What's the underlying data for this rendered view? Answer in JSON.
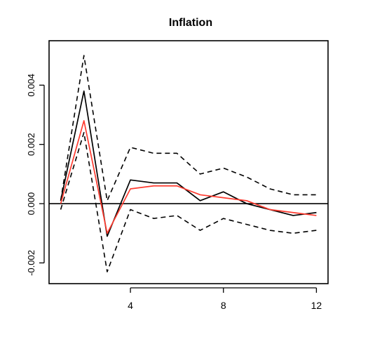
{
  "chart_data": {
    "type": "line",
    "title": "Inflation",
    "xlabel": "",
    "ylabel": "",
    "x": [
      1,
      2,
      3,
      4,
      5,
      6,
      7,
      8,
      9,
      10,
      11,
      12
    ],
    "xlim": [
      0.5,
      12.5
    ],
    "ylim": [
      -0.0027,
      0.0055
    ],
    "xticks": [
      4,
      8,
      12
    ],
    "xtick_labels": [
      "4",
      "8",
      "12"
    ],
    "yticks": [
      -0.002,
      0.0,
      0.002,
      0.004
    ],
    "ytick_labels": [
      "-0.002",
      "0.000",
      "0.002",
      "0.004"
    ],
    "zero_line": 0,
    "grid": false,
    "legend": "none",
    "series": [
      {
        "style": "dashed",
        "color": "#000000",
        "values": [
          0.0001,
          0.005,
          0.0001,
          0.0019,
          0.0017,
          0.0017,
          0.001,
          0.0012,
          0.0009,
          0.0005,
          0.0003,
          0.0003
        ]
      },
      {
        "style": "solid",
        "color": "#000000",
        "values": [
          0.0001,
          0.0038,
          -0.0011,
          0.0008,
          0.0007,
          0.0007,
          0.0001,
          0.0004,
          0.0,
          -0.0002,
          -0.0004,
          -0.0003
        ]
      },
      {
        "style": "solid",
        "color": "#ff3b2f",
        "values": [
          0.0,
          0.0028,
          -0.001,
          0.0005,
          0.0006,
          0.0006,
          0.0003,
          0.0002,
          0.0001,
          -0.0002,
          -0.0003,
          -0.0004
        ]
      },
      {
        "style": "dashed",
        "color": "#000000",
        "values": [
          -0.0002,
          0.0024,
          -0.0023,
          -0.0002,
          -0.0005,
          -0.0004,
          -0.0009,
          -0.0005,
          -0.0007,
          -0.0009,
          -0.001,
          -0.0009
        ]
      }
    ]
  }
}
